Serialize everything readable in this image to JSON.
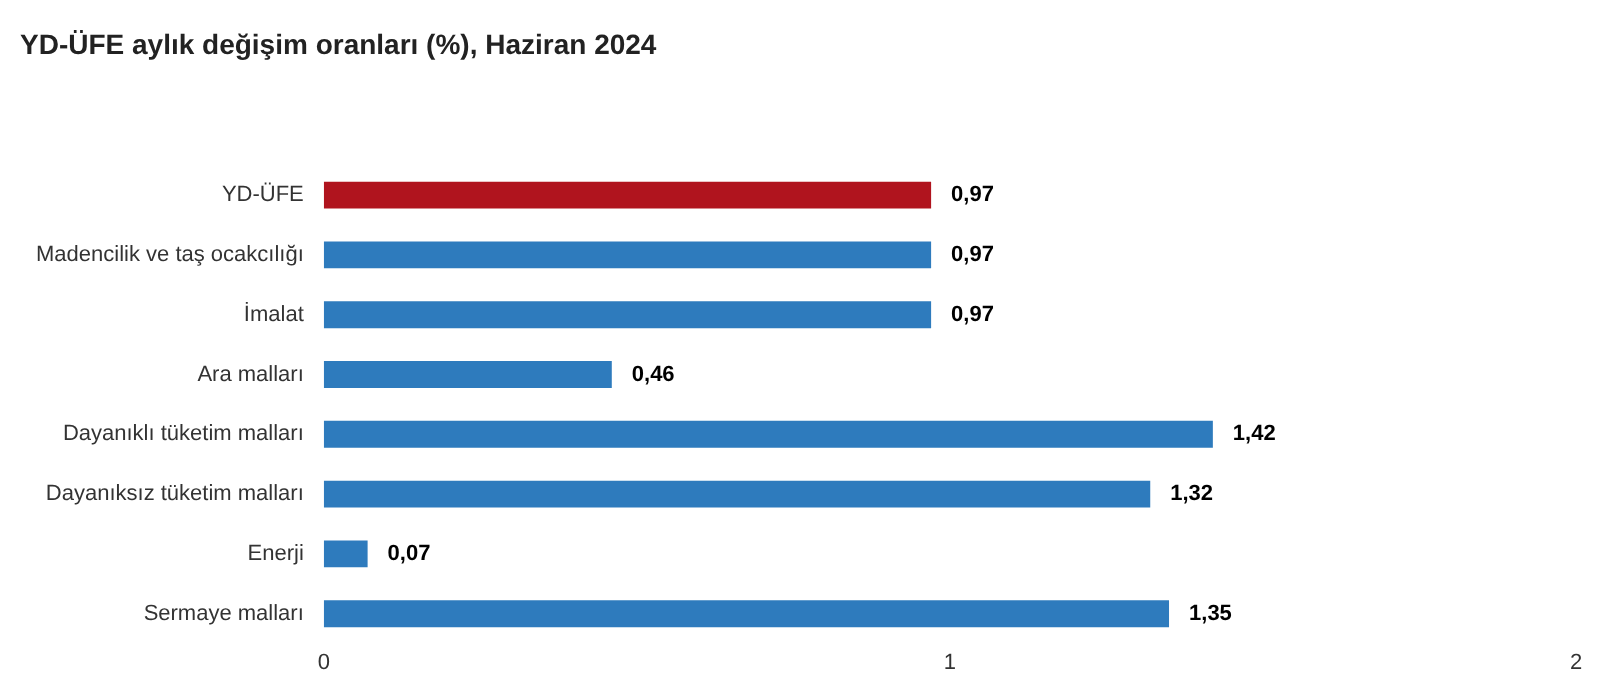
{
  "chart_data": {
    "type": "bar",
    "orientation": "horizontal",
    "title": "YD-ÜFE aylık değişim oranları (%), Haziran 2024",
    "categories": [
      "YD-ÜFE",
      "Madencilik ve taş ocakcılığı",
      "İmalat",
      "Ara malları",
      "Dayanıklı tüketim malları",
      "Dayanıksız tüketim malları",
      "Enerji",
      "Sermaye malları"
    ],
    "values": [
      0.97,
      0.97,
      0.97,
      0.46,
      1.42,
      1.32,
      0.07,
      1.35
    ],
    "value_labels": [
      "0,97",
      "0,97",
      "0,97",
      "0,46",
      "1,42",
      "1,32",
      "0,07",
      "1,35"
    ],
    "colors": [
      "#b0141e",
      "#2e7bbd",
      "#2e7bbd",
      "#2e7bbd",
      "#2e7bbd",
      "#2e7bbd",
      "#2e7bbd",
      "#2e7bbd"
    ],
    "xlim": [
      0,
      2
    ],
    "xticks": [
      0,
      1,
      2
    ],
    "grid": false,
    "legend": false
  }
}
